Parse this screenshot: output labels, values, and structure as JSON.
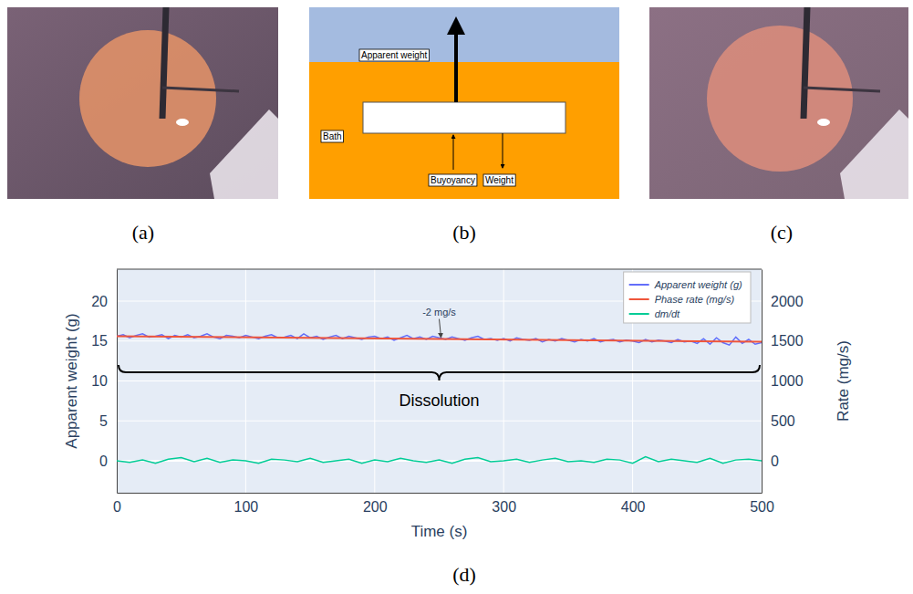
{
  "panel_labels": [
    "(a)",
    "(b)",
    "(c)",
    "(d)"
  ],
  "diagram": {
    "apparent_weight": "Apparent weight",
    "bath": "Bath",
    "buoyancy": "Buyoyancy",
    "weight": "Weight"
  },
  "chart_data": {
    "type": "line",
    "xlabel": "Time (s)",
    "ylabel": "Apparent weight (g)",
    "y2label": "Rate (mg/s)",
    "xlim": [
      0,
      500
    ],
    "xticks": [
      0,
      100,
      200,
      300,
      400,
      500
    ],
    "ylim": [
      -4,
      24
    ],
    "yticks": [
      0,
      5,
      10,
      15,
      20
    ],
    "y2lim": [
      -400,
      2400
    ],
    "y2ticks": [
      0,
      500,
      1000,
      1500,
      2000
    ],
    "grid": true,
    "legend": "upper right",
    "annotations": [
      {
        "text": "-2 mg/s",
        "x": 250,
        "y": 15.25
      }
    ],
    "bracket_label": "Dissolution",
    "series": [
      {
        "name": "Apparent weight (g)",
        "color": "#636efa",
        "x": [
          0,
          5,
          10,
          15,
          20,
          25,
          30,
          35,
          40,
          45,
          50,
          55,
          60,
          65,
          70,
          75,
          80,
          85,
          90,
          95,
          100,
          105,
          110,
          115,
          120,
          125,
          130,
          135,
          140,
          145,
          150,
          155,
          160,
          165,
          170,
          175,
          180,
          185,
          190,
          195,
          200,
          205,
          210,
          215,
          220,
          225,
          230,
          235,
          240,
          245,
          250,
          255,
          260,
          265,
          270,
          275,
          280,
          285,
          290,
          295,
          300,
          305,
          310,
          315,
          320,
          325,
          330,
          335,
          340,
          345,
          350,
          355,
          360,
          365,
          370,
          375,
          380,
          385,
          390,
          395,
          400,
          405,
          410,
          415,
          420,
          425,
          430,
          435,
          440,
          445,
          450,
          455,
          460,
          465,
          470,
          475,
          480,
          485,
          490,
          495,
          500
        ],
        "values": [
          15.6,
          15.8,
          15.4,
          15.7,
          15.9,
          15.5,
          15.6,
          15.8,
          15.3,
          15.7,
          15.5,
          15.8,
          15.4,
          15.6,
          15.9,
          15.5,
          15.3,
          15.7,
          15.6,
          15.4,
          15.7,
          15.5,
          15.3,
          15.6,
          15.8,
          15.4,
          15.5,
          15.7,
          15.3,
          15.9,
          15.4,
          15.6,
          15.2,
          15.5,
          15.7,
          15.3,
          15.6,
          15.4,
          15.2,
          15.5,
          15.6,
          15.3,
          15.5,
          15.1,
          15.4,
          15.7,
          15.3,
          15.5,
          15.2,
          15.6,
          15.4,
          15.2,
          15.5,
          15.3,
          15.1,
          15.4,
          15.6,
          15.2,
          15.3,
          15.1,
          15.3,
          15.0,
          15.4,
          15.2,
          15.1,
          15.3,
          14.9,
          15.2,
          15.0,
          15.3,
          15.1,
          14.9,
          15.2,
          15.0,
          15.3,
          14.9,
          15.1,
          15.2,
          14.9,
          15.1,
          15.0,
          14.8,
          15.2,
          14.9,
          15.1,
          15.0,
          14.8,
          15.2,
          14.9,
          15.0,
          14.7,
          15.3,
          14.6,
          15.4,
          14.8,
          14.5,
          15.5,
          14.7,
          15.2,
          14.6,
          14.8
        ]
      },
      {
        "name": "Phase rate (mg/s)",
        "color": "#ef553b",
        "x": [
          0,
          500
        ],
        "values": [
          15.6,
          14.9
        ]
      },
      {
        "name": "dm/dt",
        "color": "#00cc96",
        "axis": "y2",
        "x": [
          0,
          10,
          20,
          30,
          40,
          50,
          60,
          70,
          80,
          90,
          100,
          110,
          120,
          130,
          140,
          150,
          160,
          170,
          180,
          190,
          200,
          210,
          220,
          230,
          240,
          250,
          260,
          270,
          280,
          290,
          300,
          310,
          320,
          330,
          340,
          350,
          360,
          370,
          380,
          390,
          400,
          410,
          420,
          430,
          440,
          450,
          460,
          470,
          480,
          490,
          500
        ],
        "values": [
          0,
          -20,
          10,
          -30,
          20,
          40,
          -10,
          30,
          -20,
          10,
          0,
          -30,
          20,
          10,
          -10,
          30,
          -20,
          0,
          20,
          -30,
          10,
          -10,
          30,
          0,
          -20,
          10,
          -30,
          20,
          40,
          -10,
          0,
          20,
          -20,
          10,
          30,
          -10,
          0,
          -20,
          20,
          10,
          -30,
          50,
          -10,
          20,
          0,
          -20,
          30,
          -30,
          10,
          20,
          0
        ]
      }
    ]
  }
}
